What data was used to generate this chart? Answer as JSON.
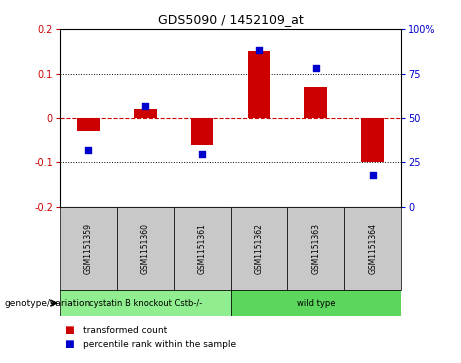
{
  "title": "GDS5090 / 1452109_at",
  "samples": [
    "GSM1151359",
    "GSM1151360",
    "GSM1151361",
    "GSM1151362",
    "GSM1151363",
    "GSM1151364"
  ],
  "bar_values": [
    -0.03,
    0.02,
    -0.06,
    0.15,
    0.07,
    -0.1
  ],
  "percentile_values": [
    32,
    57,
    30,
    88,
    78,
    18
  ],
  "ylim_left": [
    -0.2,
    0.2
  ],
  "ylim_right": [
    0,
    100
  ],
  "yticks_left": [
    -0.2,
    -0.1,
    0.0,
    0.1,
    0.2
  ],
  "yticks_right": [
    0,
    25,
    50,
    75,
    100
  ],
  "ytick_labels_left": [
    "-0.2",
    "-0.1",
    "0",
    "0.1",
    "0.2"
  ],
  "ytick_labels_right": [
    "0",
    "25",
    "50",
    "75",
    "100%"
  ],
  "bar_color": "#cc0000",
  "dot_color": "#0000cc",
  "hline_color": "#cc0000",
  "gridline_color": "#000000",
  "groups": [
    {
      "label": "cystatin B knockout Cstb-/-",
      "samples": [
        0,
        1,
        2
      ],
      "color": "#90ee90"
    },
    {
      "label": "wild type",
      "samples": [
        3,
        4,
        5
      ],
      "color": "#5cd65c"
    }
  ],
  "genotype_label": "genotype/variation",
  "legend_items": [
    {
      "label": "transformed count",
      "color": "#cc0000"
    },
    {
      "label": "percentile rank within the sample",
      "color": "#0000cc"
    }
  ],
  "sample_box_color": "#c8c8c8",
  "background_color": "#ffffff"
}
